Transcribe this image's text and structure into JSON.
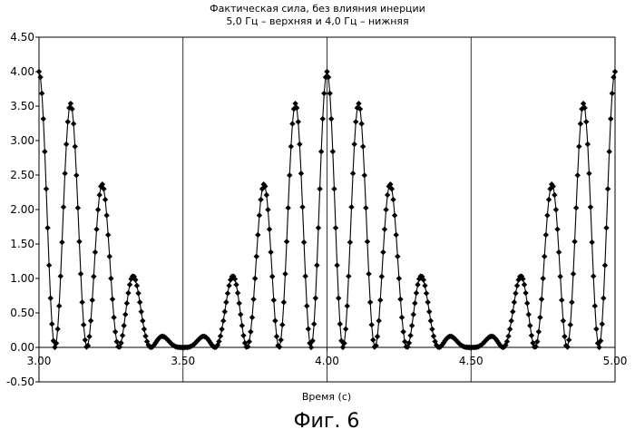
{
  "chart_data": {
    "type": "line",
    "title_line1": "Фактическая сила, без влияния инерции",
    "title_line2": "5,0 Гц – верхняя и 4,0 Гц – нижняя",
    "xlabel": "Время (с)",
    "ylabel": "",
    "xlim": [
      3.0,
      5.0
    ],
    "ylim": [
      -0.5,
      4.5
    ],
    "x_ticks": [
      "3.00",
      "3.50",
      "4.00",
      "4.50",
      "5.00"
    ],
    "x_tick_values": [
      3.0,
      3.5,
      4.0,
      4.5,
      5.0
    ],
    "y_ticks": [
      "4.50",
      "4.00",
      "3.50",
      "3.00",
      "2.50",
      "2.00",
      "1.50",
      "1.00",
      "0.50",
      "0.00",
      "-0.50"
    ],
    "y_tick_values": [
      4.5,
      4.0,
      3.5,
      3.0,
      2.5,
      2.0,
      1.5,
      1.0,
      0.5,
      0.0,
      -0.5
    ],
    "vertical_gridlines_at": [
      3.5,
      4.0,
      4.5
    ],
    "sample_step": 0.005,
    "series": [
      {
        "components_hz": [
          5.0,
          4.0
        ],
        "peaks": [
          {
            "x": 3.0,
            "y": 4.0
          },
          {
            "x": 3.11,
            "y": 3.55
          },
          {
            "x": 3.22,
            "y": 2.35
          },
          {
            "x": 3.33,
            "y": 1.02
          },
          {
            "x": 3.44,
            "y": 0.15
          },
          {
            "x": 3.56,
            "y": 0.15
          },
          {
            "x": 3.67,
            "y": 1.02
          },
          {
            "x": 3.78,
            "y": 2.35
          },
          {
            "x": 3.89,
            "y": 3.55
          },
          {
            "x": 4.0,
            "y": 4.0
          },
          {
            "x": 4.11,
            "y": 3.55
          },
          {
            "x": 4.22,
            "y": 2.35
          },
          {
            "x": 4.33,
            "y": 1.02
          },
          {
            "x": 4.44,
            "y": 0.15
          },
          {
            "x": 4.56,
            "y": 0.15
          },
          {
            "x": 4.67,
            "y": 1.02
          },
          {
            "x": 4.78,
            "y": 2.35
          },
          {
            "x": 4.89,
            "y": 3.55
          },
          {
            "x": 5.0,
            "y": 4.0
          }
        ]
      }
    ],
    "line_color": "#000000",
    "marker": "diamond",
    "grid": "vertical-only"
  },
  "caption": "Фиг. 6"
}
